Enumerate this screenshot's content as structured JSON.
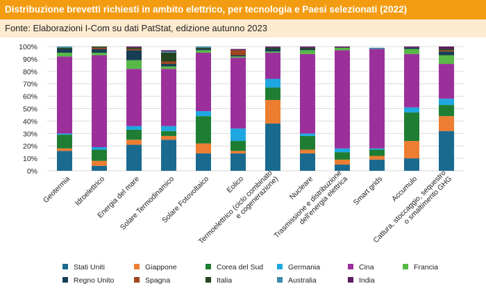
{
  "header": {
    "title": "Distribuzione brevetti richiesti in ambito elettrico, per tecnologia e Paesi selezionati (2022)",
    "source": "Fonte: Elaborazioni I-Com su dati PatStat, edizione autunno 2023"
  },
  "chart_data": {
    "type": "bar",
    "stacked": true,
    "percent": true,
    "ylim": [
      0,
      100
    ],
    "yticks": [
      "0%",
      "10%",
      "20%",
      "30%",
      "40%",
      "50%",
      "60%",
      "70%",
      "80%",
      "90%",
      "100%"
    ],
    "grid": true,
    "legend_position": "bottom",
    "categories": [
      [
        "Geotermia"
      ],
      [
        "Idroelettrico"
      ],
      [
        "Energia del mare"
      ],
      [
        "Solare Termodinamico"
      ],
      [
        "Solare Fotovoltaico"
      ],
      [
        "Eolico"
      ],
      [
        "Termoelettrico (ciclo combinato",
        "e cogenerazione)"
      ],
      [
        "Nucleare"
      ],
      [
        "Trasmissione e distribuzione",
        "dell'energia elettrica"
      ],
      [
        "Smart grids"
      ],
      [
        "Accumulo"
      ],
      [
        "Cattura, stoccaggio, sequestro",
        "o smaltimento GHG"
      ]
    ],
    "series": [
      {
        "name": "Stati Uniti",
        "color": "#1a6a8f",
        "values": [
          16,
          4,
          21,
          25,
          14,
          14,
          38,
          14,
          5,
          9,
          10,
          32
        ]
      },
      {
        "name": "Giappone",
        "color": "#ed7d31",
        "values": [
          2,
          4,
          4,
          3,
          8,
          2,
          19,
          3,
          4,
          3,
          14,
          12
        ]
      },
      {
        "name": "Corea del Sud",
        "color": "#1e7d32",
        "values": [
          11,
          9,
          8,
          4,
          22,
          8,
          10,
          11,
          6,
          5,
          23,
          9
        ]
      },
      {
        "name": "Germania",
        "color": "#1ea7e1",
        "values": [
          1,
          2,
          3,
          4,
          4,
          10,
          7,
          2,
          3,
          1,
          4,
          5
        ]
      },
      {
        "name": "Cina",
        "color": "#9b309b",
        "values": [
          62,
          74,
          46,
          46,
          47,
          57,
          21,
          64,
          79,
          80,
          43,
          28
        ]
      },
      {
        "name": "Francia",
        "color": "#58b947",
        "values": [
          3,
          2,
          7,
          2,
          2,
          1,
          1,
          3,
          2,
          0,
          4,
          7
        ]
      },
      {
        "name": "Regno Unito",
        "color": "#173d54",
        "values": [
          3,
          3,
          8,
          2,
          1,
          1,
          2,
          1,
          0,
          0,
          1,
          3
        ]
      },
      {
        "name": "Spagna",
        "color": "#a0461e",
        "values": [
          0,
          1,
          1,
          2,
          0,
          4,
          0,
          0,
          0,
          0,
          0,
          1
        ]
      },
      {
        "name": "Italia",
        "color": "#24431e",
        "values": [
          1,
          1,
          1,
          7,
          1,
          0,
          1,
          1,
          0,
          0,
          0,
          1
        ]
      },
      {
        "name": "Australia",
        "color": "#3f8aa6",
        "values": [
          1,
          0,
          0,
          1,
          1,
          0,
          0,
          0,
          0,
          1,
          0,
          0
        ]
      },
      {
        "name": "India",
        "color": "#5b1e5e",
        "values": [
          0,
          0,
          1,
          1,
          0,
          1,
          1,
          1,
          1,
          0,
          1,
          2
        ]
      }
    ]
  }
}
